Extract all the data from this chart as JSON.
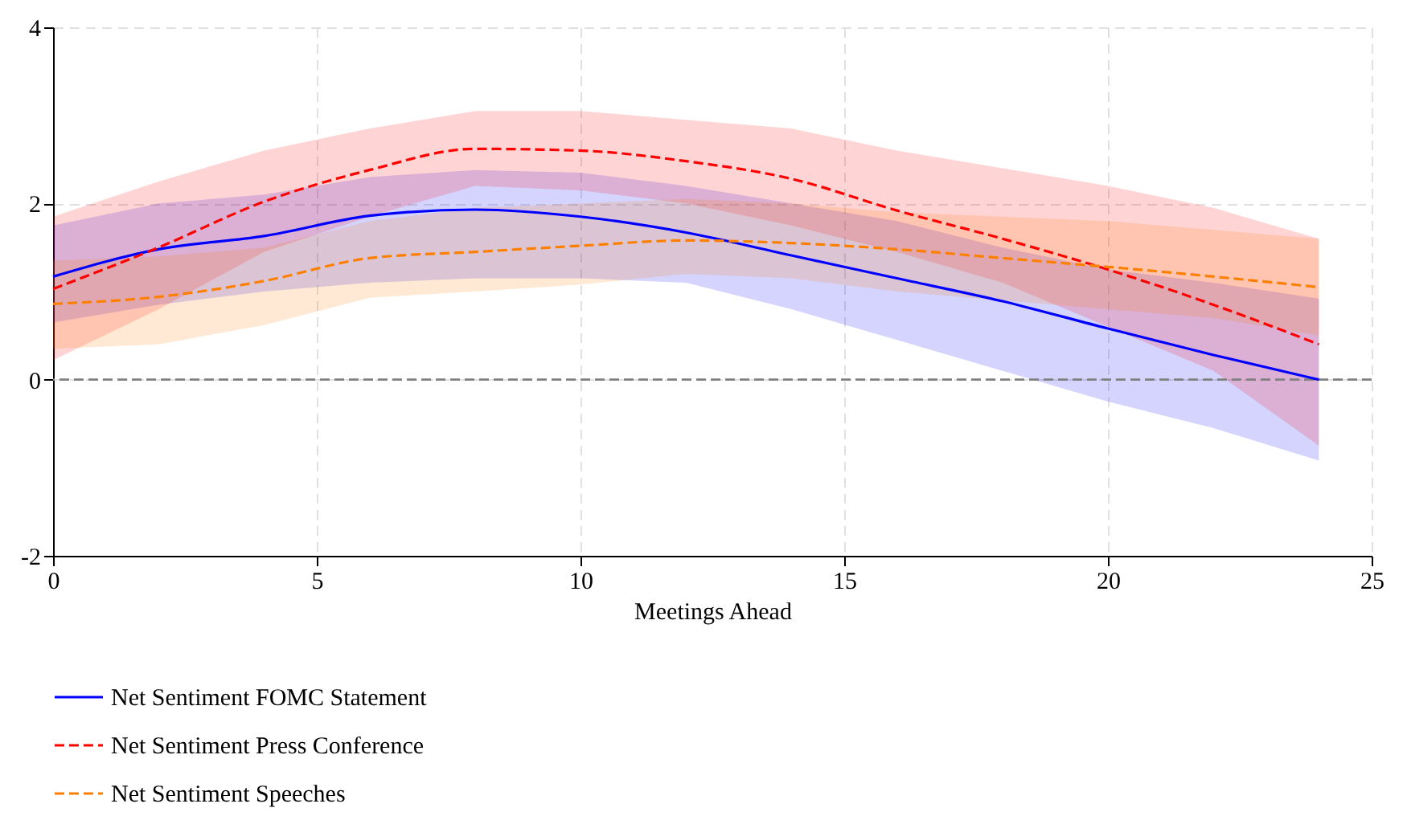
{
  "chart_data": {
    "type": "line",
    "xlabel": "Meetings Ahead",
    "x": [
      0,
      2,
      4,
      6,
      8,
      10,
      12,
      14,
      16,
      18,
      20,
      22,
      24
    ],
    "xlim": [
      0,
      25
    ],
    "xticks": [
      0,
      5,
      10,
      15,
      20,
      25
    ],
    "ylim": [
      -2,
      4
    ],
    "yticks": [
      -2,
      0,
      2,
      4
    ],
    "grid": true,
    "legend": "bottom",
    "ref_lines": [
      {
        "axis": "y",
        "value": 0,
        "color": "#808080",
        "line_style": "dashed"
      }
    ],
    "series": [
      {
        "name": "Net Sentiment FOMC Statement",
        "color": "#0000ff",
        "line_style": "solid",
        "values": [
          1.17,
          1.48,
          1.63,
          1.86,
          1.93,
          1.85,
          1.67,
          1.41,
          1.15,
          0.89,
          0.58,
          0.28,
          0.0
        ],
        "lower": [
          0.65,
          0.85,
          1.0,
          1.1,
          1.15,
          1.15,
          1.1,
          0.8,
          0.45,
          0.1,
          -0.25,
          -0.55,
          -0.92
        ],
        "upper": [
          1.75,
          2.0,
          2.1,
          2.3,
          2.38,
          2.35,
          2.2,
          2.0,
          1.8,
          1.5,
          1.25,
          1.1,
          0.92
        ]
      },
      {
        "name": "Net Sentiment Press Conference",
        "color": "#ff0000",
        "line_style": "dashed",
        "values": [
          1.03,
          1.5,
          2.02,
          2.38,
          2.62,
          2.6,
          2.48,
          2.28,
          1.92,
          1.6,
          1.25,
          0.85,
          0.4
        ],
        "lower": [
          0.22,
          0.8,
          1.45,
          1.85,
          2.2,
          2.15,
          2.0,
          1.75,
          1.45,
          1.1,
          0.6,
          0.1,
          -0.75
        ],
        "upper": [
          1.85,
          2.25,
          2.6,
          2.85,
          3.05,
          3.05,
          2.95,
          2.85,
          2.6,
          2.4,
          2.2,
          1.95,
          1.6
        ]
      },
      {
        "name": "Net Sentiment Speeches",
        "color": "#ff7f00",
        "line_style": "dashed",
        "values": [
          0.86,
          0.94,
          1.12,
          1.38,
          1.45,
          1.52,
          1.58,
          1.55,
          1.48,
          1.38,
          1.28,
          1.17,
          1.05
        ],
        "lower": [
          0.35,
          0.4,
          0.62,
          0.93,
          1.0,
          1.08,
          1.2,
          1.15,
          1.0,
          0.9,
          0.8,
          0.7,
          0.5
        ],
        "upper": [
          1.35,
          1.4,
          1.5,
          1.8,
          1.95,
          2.0,
          2.05,
          2.0,
          1.9,
          1.85,
          1.8,
          1.7,
          1.6
        ]
      }
    ]
  }
}
